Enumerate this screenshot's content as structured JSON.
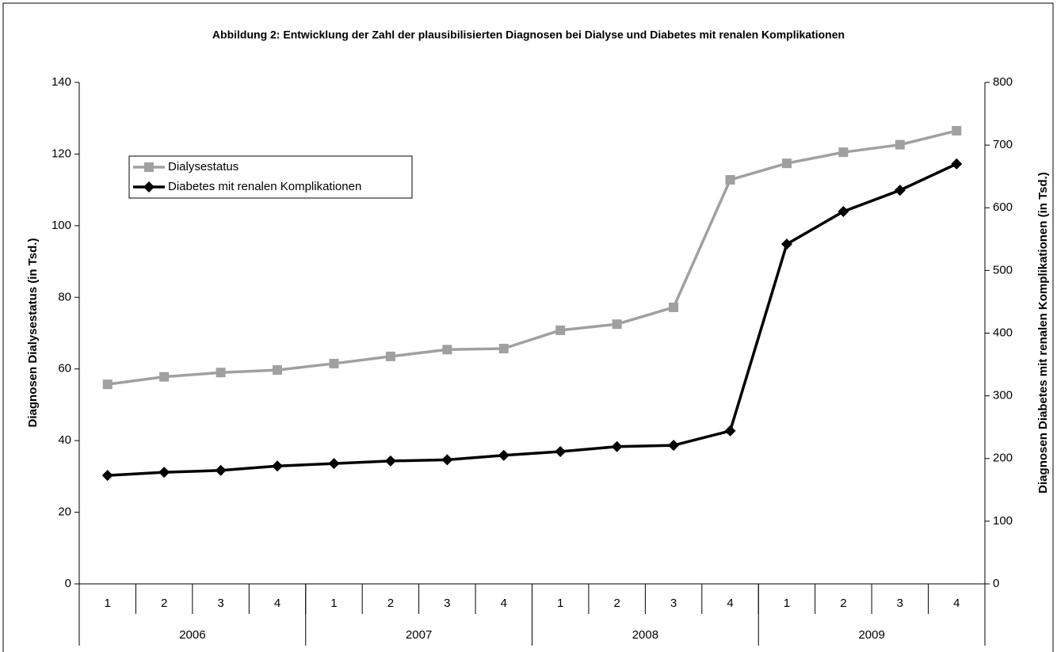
{
  "chart_data": {
    "type": "line",
    "title": "Abbildung 2: Entwicklung der Zahl der plausibilisierten Diagnosen bei Dialyse und Diabetes mit renalen Komplikationen",
    "y_label": "Diagnosen Dialysestatus (in Tsd.)",
    "y2_label": "Diagnosen Diabetes mit renalen Komplikationen (in Tsd.)",
    "categories": [
      "1",
      "2",
      "3",
      "4",
      "1",
      "2",
      "3",
      "4",
      "1",
      "2",
      "3",
      "4",
      "1",
      "2",
      "3",
      "4"
    ],
    "category_groups": [
      "2006",
      "2007",
      "2008",
      "2009"
    ],
    "ylim": [
      0,
      140
    ],
    "yticks": [
      0,
      20,
      40,
      60,
      80,
      100,
      120,
      140
    ],
    "y2lim": [
      0,
      800
    ],
    "y2ticks": [
      0,
      100,
      200,
      300,
      400,
      500,
      600,
      700,
      800
    ],
    "grid": false,
    "series": [
      {
        "name": "Dialysestatus",
        "color": "#a0a0a0",
        "marker": "square",
        "values": [
          55.7,
          57.8,
          59.0,
          59.7,
          61.5,
          63.5,
          65.4,
          65.7,
          70.8,
          72.5,
          77.2,
          112.8,
          117.4,
          120.5,
          122.6,
          126.5
        ]
      },
      {
        "name": "Diabetes mit renalen Komplikationen",
        "color": "#000000",
        "marker": "diamond",
        "axis": "y2",
        "values": [
          173,
          178,
          181,
          188,
          192,
          196,
          198,
          205,
          211,
          219,
          221,
          244,
          542,
          594,
          628,
          670
        ]
      }
    ]
  }
}
